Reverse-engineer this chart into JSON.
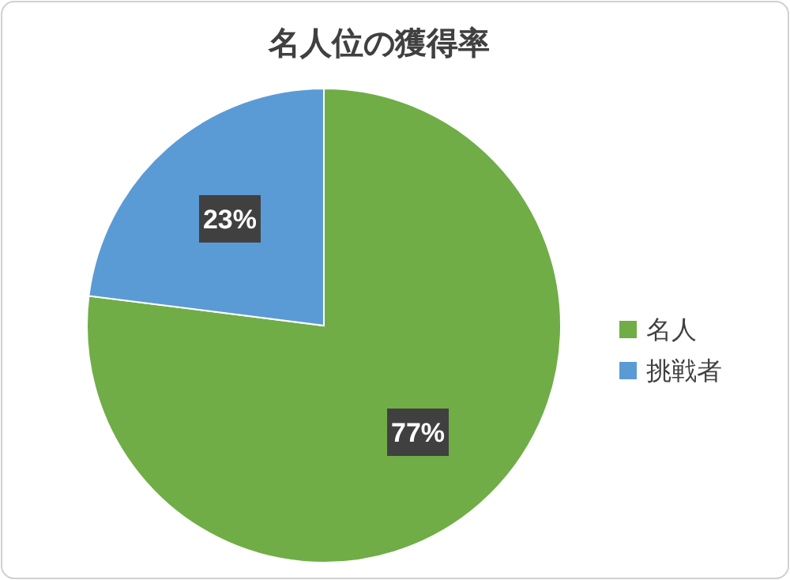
{
  "chart_data": {
    "type": "pie",
    "title": "名人位の獲得率",
    "categories": [
      "名人",
      "挑戦者"
    ],
    "values": [
      77,
      23
    ],
    "colors": [
      "#70ad47",
      "#5b9bd5"
    ],
    "value_labels": [
      "77%",
      "23%"
    ],
    "legend": "right"
  }
}
